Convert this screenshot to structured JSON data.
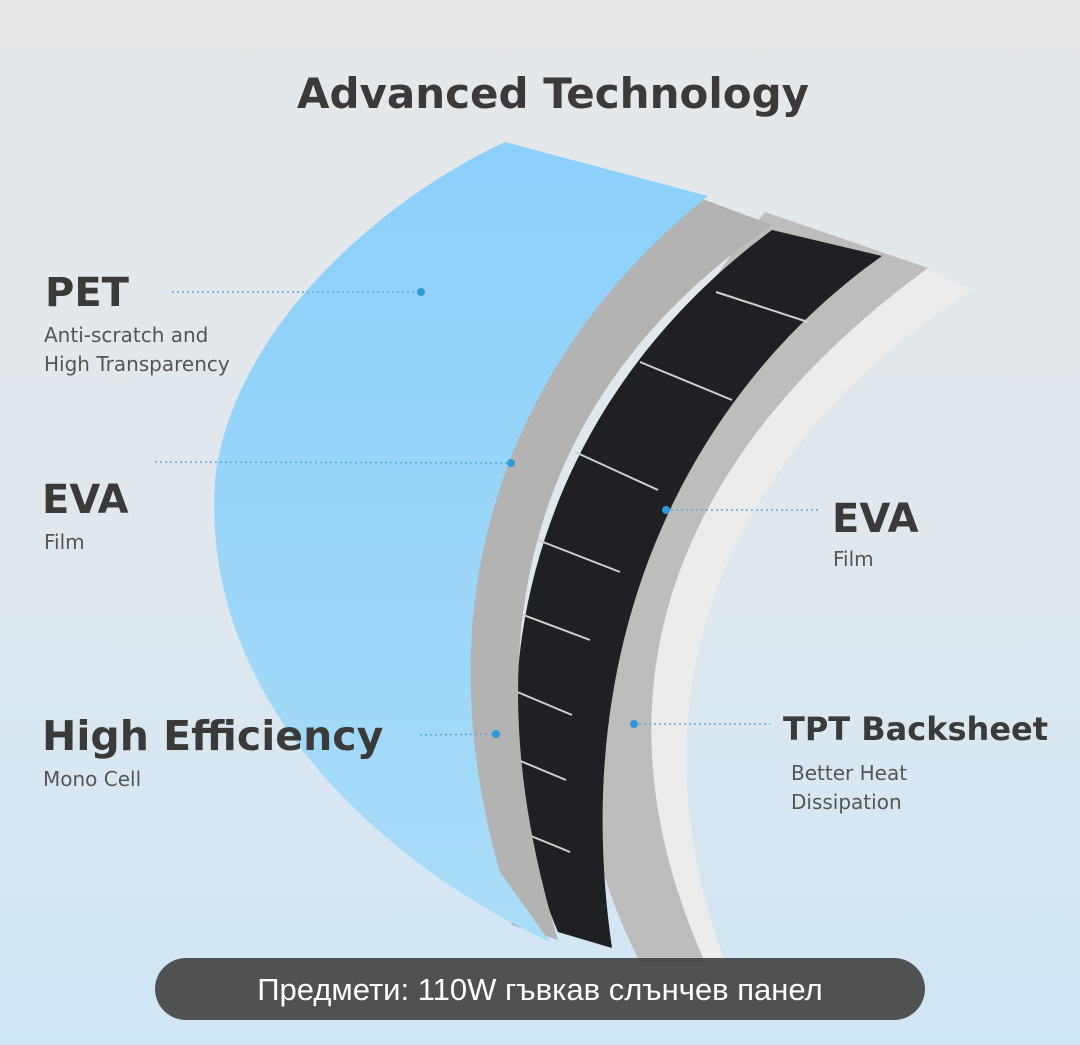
{
  "header": {
    "title": "Advanced Technology"
  },
  "labels": [
    {
      "heading": "PET",
      "lines": [
        "Anti-scratch and",
        "High Transparency"
      ]
    },
    {
      "heading": "EVA",
      "lines": [
        "Film"
      ]
    },
    {
      "heading": "High Efficiency",
      "lines": [
        "Mono Cell"
      ]
    },
    {
      "heading": "EVA",
      "lines": [
        "Film"
      ]
    },
    {
      "heading": "TPT Backsheet",
      "lines": [
        "Better Heat",
        "Dissipation"
      ]
    }
  ],
  "caption": "Предмети: 110W гъвкав слънчев панел"
}
